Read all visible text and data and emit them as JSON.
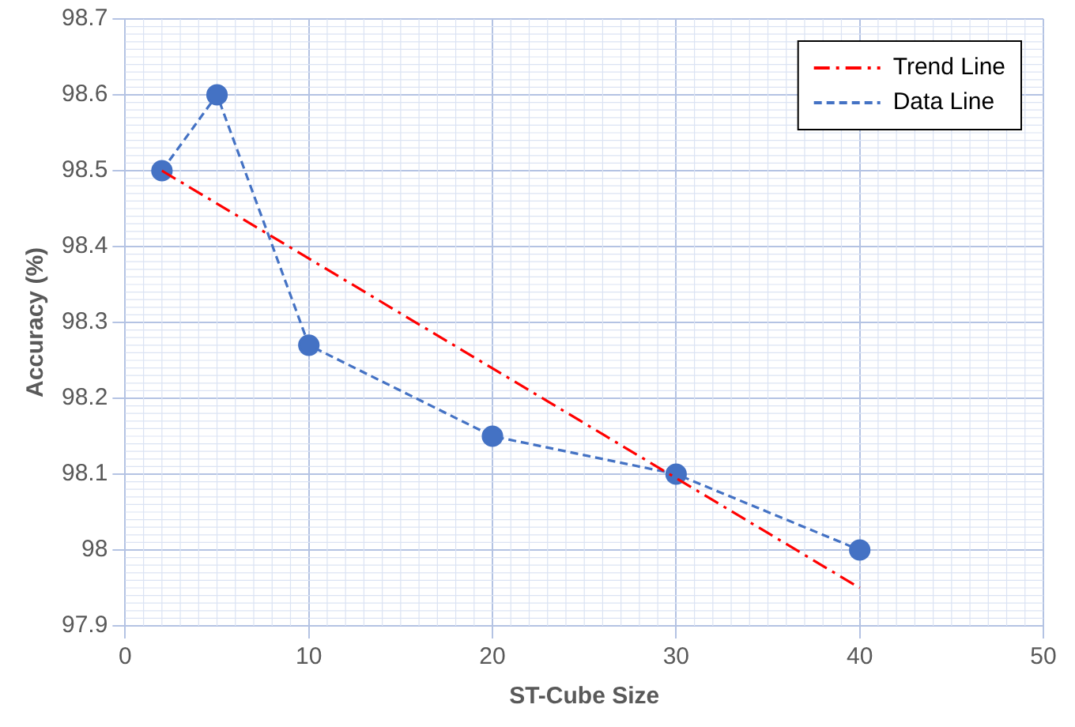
{
  "chart_data": {
    "type": "line",
    "xlabel": "ST-Cube Size",
    "ylabel": "Accuracy (%)",
    "xlim": [
      0,
      50
    ],
    "xticks": [
      0,
      10,
      20,
      30,
      40,
      50
    ],
    "ylim": [
      97.9,
      98.7
    ],
    "yticks": [
      97.9,
      98,
      98.1,
      98.2,
      98.3,
      98.4,
      98.5,
      98.6,
      98.7
    ],
    "grid": true,
    "legend": "top right",
    "series": [
      {
        "name": "Trend Line",
        "color": "#ff0000",
        "x": [
          2,
          40
        ],
        "values": [
          98.5,
          97.95
        ],
        "line_style": "dashdot",
        "marker": "none"
      },
      {
        "name": "Data Line",
        "color": "#4472c4",
        "x": [
          2,
          5,
          10,
          20,
          30,
          40
        ],
        "values": [
          98.5,
          98.6,
          98.27,
          98.15,
          98.1,
          98.0
        ],
        "line_style": "dashed",
        "marker": "circle"
      }
    ]
  }
}
